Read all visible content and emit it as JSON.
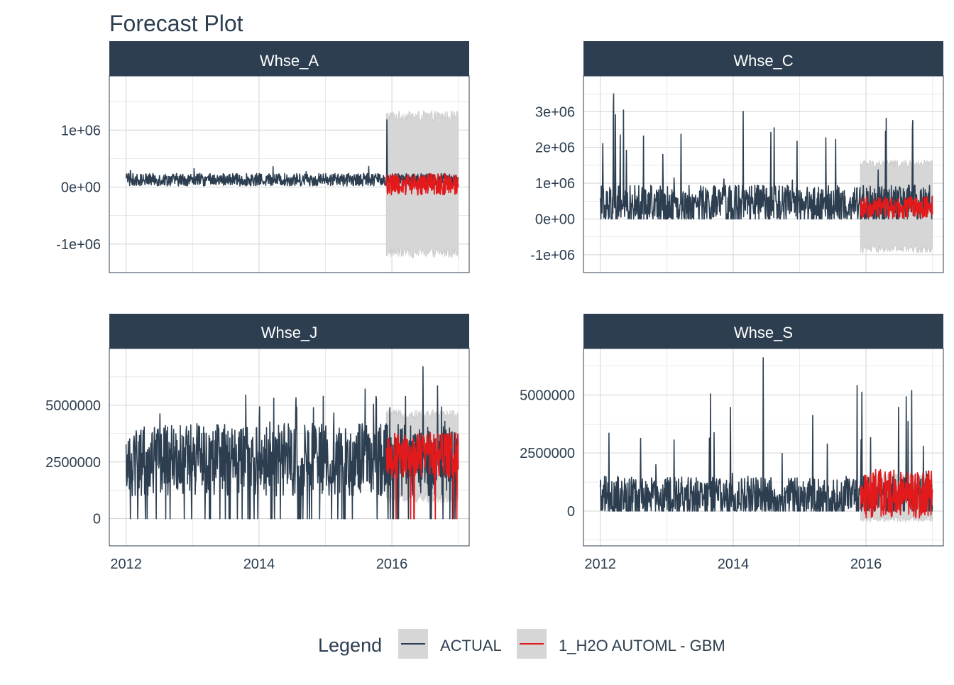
{
  "chart_data": {
    "type": "line",
    "title": "Forecast Plot",
    "x_tick_labels": [
      "2012",
      "2014",
      "2016"
    ],
    "x_range": [
      "2011-10-01",
      "2017-03-01"
    ],
    "forecast_start": "2015-12-01",
    "data_end": "2016-12-31",
    "legend": {
      "title": "Legend",
      "position": "bottom",
      "entries": [
        {
          "name": "ACTUAL",
          "color": "#2C3E50"
        },
        {
          "name": "1_H2O AUTOML - GBM",
          "color": "#E31A1C"
        }
      ]
    },
    "colors": {
      "actual": "#2C3E50",
      "forecast": "#E31A1C",
      "conf_band": "#D6D6D6",
      "strip_bg": "#2C3E50",
      "strip_text": "#FFFFFF",
      "grid": "#D3D3D3",
      "text": "#2C3E50"
    },
    "grid": true,
    "panels": [
      {
        "name": "Whse_A",
        "ylim": [
          -1500000,
          1950000
        ],
        "y_ticks": [
          1000000,
          0,
          -1000000
        ],
        "y_tick_labels": [
          "1e+06",
          "0e+00",
          "-1e+06"
        ],
        "actual": {
          "base": 130000,
          "noise": 110000,
          "spike_prob": 0.004,
          "spike_range": [
            200000,
            400000
          ],
          "drop_prob": 0,
          "peak": {
            "date": "2015-12-05",
            "value": 1180000
          }
        },
        "forecast": {
          "base": 50000,
          "noise": 190000
        },
        "band": {
          "lower": -1150000,
          "upper": 1250000,
          "jitter": 190000
        }
      },
      {
        "name": "Whse_C",
        "ylim": [
          -1500000,
          4000000
        ],
        "y_ticks": [
          3000000,
          2000000,
          1000000,
          0,
          -1000000
        ],
        "y_tick_labels": [
          "3e+06",
          "2e+06",
          "1e+06",
          "0e+00",
          "-1e+06"
        ],
        "actual": {
          "base": 400000,
          "noise": 550000,
          "spike_prob": 0.03,
          "spike_range": [
            1000000,
            3300000
          ],
          "drop_prob": 0,
          "peak": {
            "date": "2012-03-15",
            "value": 3500000
          }
        },
        "forecast": {
          "base": 330000,
          "noise": 300000
        },
        "band": {
          "lower": -850000,
          "upper": 1550000,
          "jitter": 230000
        }
      },
      {
        "name": "Whse_J",
        "ylim": [
          -1200000,
          7500000
        ],
        "y_ticks": [
          5000000,
          2500000,
          0
        ],
        "y_tick_labels": [
          "5000000",
          "2500000",
          "0"
        ],
        "actual": {
          "base": 2600000,
          "noise": 1600000,
          "spike_prob": 0.03,
          "spike_range": [
            4200000,
            6000000
          ],
          "drop_prob": 0.06,
          "peak": {
            "date": "2016-06-20",
            "value": 6700000
          }
        },
        "forecast": {
          "base": 2800000,
          "noise": 1000000
        },
        "band": {
          "lower": 900000,
          "upper": 4600000,
          "jitter": 450000
        }
      },
      {
        "name": "Whse_S",
        "ylim": [
          -1500000,
          7000000
        ],
        "y_ticks": [
          5000000,
          2500000,
          0
        ],
        "y_tick_labels": [
          "5000000",
          "2500000",
          "0"
        ],
        "actual": {
          "base": 550000,
          "noise": 950000,
          "spike_prob": 0.03,
          "spike_range": [
            1500000,
            5600000
          ],
          "drop_prob": 0,
          "peak": {
            "date": "2014-06-15",
            "value": 6600000
          }
        },
        "forecast": {
          "base": 750000,
          "noise": 1050000
        },
        "band": {
          "lower": -350000,
          "upper": 1500000,
          "jitter": 250000
        }
      }
    ]
  }
}
